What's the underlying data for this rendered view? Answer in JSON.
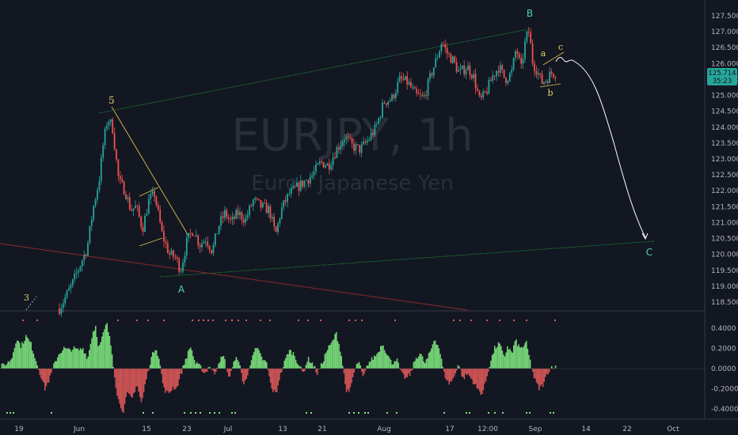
{
  "watermark": {
    "symbol": "EURJPY, 1h",
    "name": "Euro / Japanese Yen"
  },
  "colors": {
    "background": "#131722",
    "bull": "#26a69a",
    "bear": "#ef5350",
    "osc_pos": "#7ee67e",
    "osc_neg": "#e05a5a",
    "channel": "#1f9a3a",
    "wave_label": "#e5d36b",
    "abc_label": "#4fd1a5",
    "last_price": "#26a69a"
  },
  "price_axis": {
    "ticks": [
      "127.500",
      "127.000",
      "126.500",
      "126.000",
      "125.500",
      "125.000",
      "124.500",
      "124.000",
      "123.500",
      "123.000",
      "122.500",
      "122.000",
      "121.500",
      "121.000",
      "120.500",
      "120.000",
      "119.500",
      "119.000",
      "118.500"
    ],
    "min": 118.2,
    "max": 127.8
  },
  "last_price": {
    "value": "125.714",
    "countdown": "35:23"
  },
  "osc_axis": {
    "ticks": [
      "0.4000",
      "0.2000",
      "0.0000",
      "-0.2000",
      "-0.4000"
    ]
  },
  "time_axis": {
    "labels": [
      "19",
      "Jun",
      "15",
      "23",
      "Jul",
      "13",
      "21",
      "Aug",
      "17",
      "12:00",
      "Sep",
      "14",
      "22",
      "Oct"
    ]
  },
  "wave_labels": {
    "w3": "3",
    "w5": "5",
    "wA": "A",
    "wB": "B",
    "wC": "C",
    "sa": "a",
    "sb": "b",
    "sc": "c"
  },
  "chart_data": {
    "type": "line",
    "title": "EURJPY, 1h",
    "subtitle": "Euro / Japanese Yen",
    "x": [
      "19",
      "Jun",
      "15",
      "23",
      "Jul",
      "13",
      "21",
      "Aug",
      "17",
      "12:00",
      "Sep"
    ],
    "series": [
      {
        "values": [
          118.4,
          119.9,
          122.0,
          119.6,
          120.9,
          121.6,
          122.6,
          124.4,
          126.6,
          125.2,
          125.7
        ]
      }
    ],
    "ylim": [
      118.2,
      127.8
    ],
    "projection": {
      "values": [
        125.7,
        126.1,
        125.2,
        123.0,
        120.6
      ]
    },
    "oscillator": {
      "ylim": [
        -0.45,
        0.5
      ],
      "zero": 0.0
    }
  }
}
